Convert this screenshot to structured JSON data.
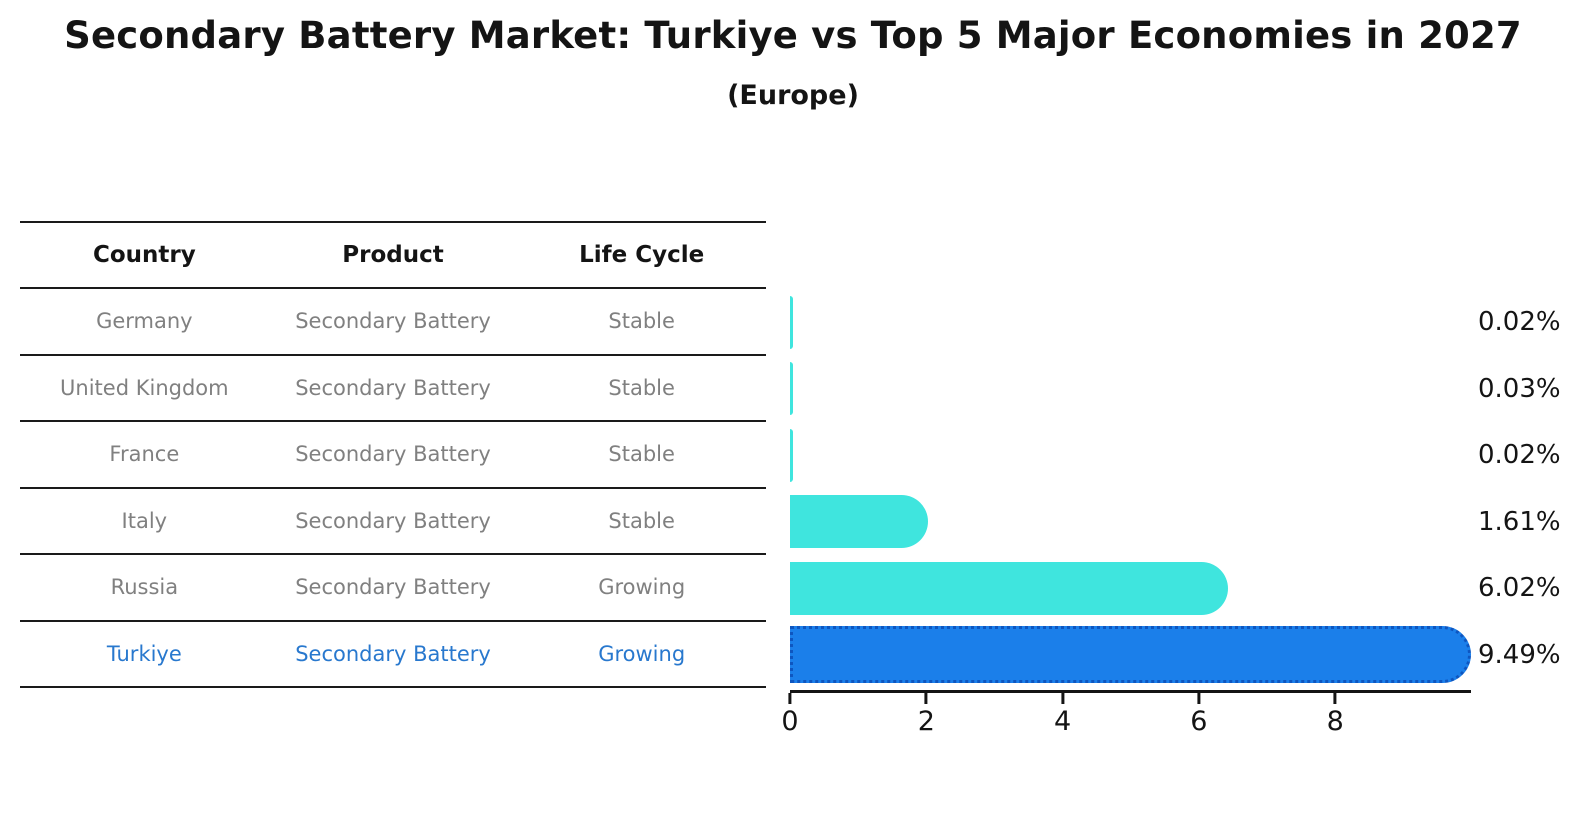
{
  "title": "Secondary Battery Market: Turkiye vs Top 5 Major Economies in 2027",
  "subtitle": "(Europe)",
  "table": {
    "headers": [
      "Country",
      "Product",
      "Life Cycle"
    ],
    "rows": [
      {
        "country": "Germany",
        "product": "Secondary Battery",
        "life_cycle": "Stable",
        "highlighted": false
      },
      {
        "country": "United Kingdom",
        "product": "Secondary Battery",
        "life_cycle": "Stable",
        "highlighted": false
      },
      {
        "country": "France",
        "product": "Secondary Battery",
        "life_cycle": "Stable",
        "highlighted": false
      },
      {
        "country": "Italy",
        "product": "Secondary Battery",
        "life_cycle": "Stable",
        "highlighted": false
      },
      {
        "country": "Russia",
        "product": "Secondary Battery",
        "life_cycle": "Growing",
        "highlighted": false
      },
      {
        "country": "Turkiye",
        "product": "Secondary Battery",
        "life_cycle": "Growing",
        "highlighted": true
      }
    ]
  },
  "chart_data": {
    "type": "bar",
    "orientation": "horizontal",
    "title": "Secondary Battery Market: Turkiye vs Top 5 Major Economies in 2027 (Europe)",
    "categories": [
      "Germany",
      "United Kingdom",
      "France",
      "Italy",
      "Russia",
      "Turkiye"
    ],
    "values": [
      0.02,
      0.03,
      0.02,
      1.61,
      6.02,
      9.49
    ],
    "value_labels": [
      "0.02%",
      "0.03%",
      "0.02%",
      "1.61%",
      "6.02%",
      "9.49%"
    ],
    "xticks": [
      0,
      2,
      4,
      6,
      8
    ],
    "xtick_labels": [
      "0",
      "2",
      "4",
      "6",
      "8"
    ],
    "xlim": [
      0,
      9.96
    ],
    "grid": false,
    "legend": false,
    "highlight_index": 5,
    "bar_color": "#3FE5DE",
    "highlight_bar_color": "#1B7FEA",
    "highlight_border_color": "#0E56C0",
    "highlight_text_color": "#2878CE"
  },
  "colors": {
    "background": "#FFFFFF",
    "text_primary": "#141414",
    "text_muted": "#808080",
    "table_line": "#1A1A1A"
  }
}
